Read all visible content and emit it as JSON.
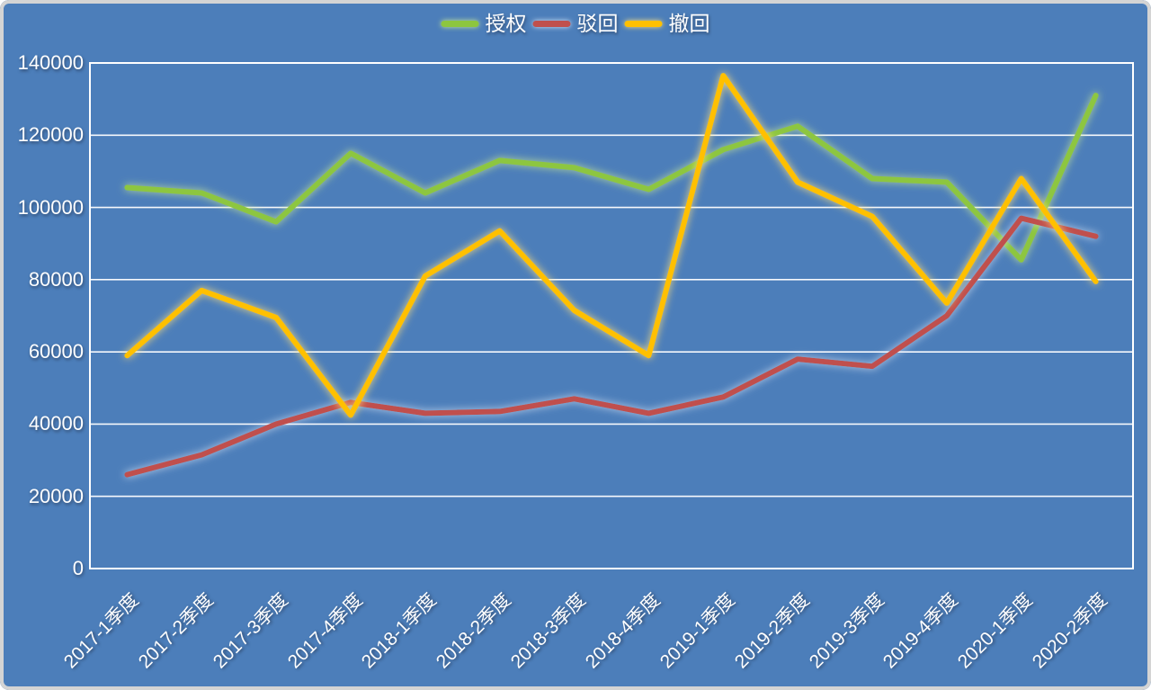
{
  "window": {
    "type": "chart-screenshot"
  },
  "colors": {
    "background": "#4C7EBA",
    "gridline": "#FFFFFF",
    "axis_text": "#FFFFFF",
    "outer_border": "#D4D4D4"
  },
  "chart_data": {
    "type": "line",
    "title": "",
    "legend_position": "top-center",
    "grid": true,
    "categories": [
      "2017-1季度",
      "2017-2季度",
      "2017-3季度",
      "2017-4季度",
      "2018-1季度",
      "2018-2季度",
      "2018-3季度",
      "2018-4季度",
      "2019-1季度",
      "2019-2季度",
      "2019-3季度",
      "2019-4季度",
      "2020-1季度",
      "2020-2季度"
    ],
    "series": [
      {
        "name": "授权",
        "color": "#8DC63F",
        "values": [
          105500,
          104000,
          96000,
          115000,
          104000,
          113000,
          111000,
          105000,
          116000,
          122500,
          108000,
          107000,
          85500,
          131000
        ]
      },
      {
        "name": "驳回",
        "color": "#C0504D",
        "values": [
          26000,
          31500,
          40000,
          46000,
          43000,
          43500,
          47000,
          43000,
          47500,
          58000,
          56000,
          70000,
          97000,
          92000
        ]
      },
      {
        "name": "撤回",
        "color": "#FFC000",
        "values": [
          59000,
          77000,
          69500,
          42500,
          81000,
          93500,
          71500,
          59000,
          136500,
          107000,
          97500,
          73500,
          108000,
          79500
        ]
      }
    ],
    "ylim": [
      0,
      140000
    ],
    "y_ticks": [
      0,
      20000,
      40000,
      60000,
      80000,
      100000,
      120000,
      140000
    ],
    "xlabel": "",
    "ylabel": ""
  }
}
